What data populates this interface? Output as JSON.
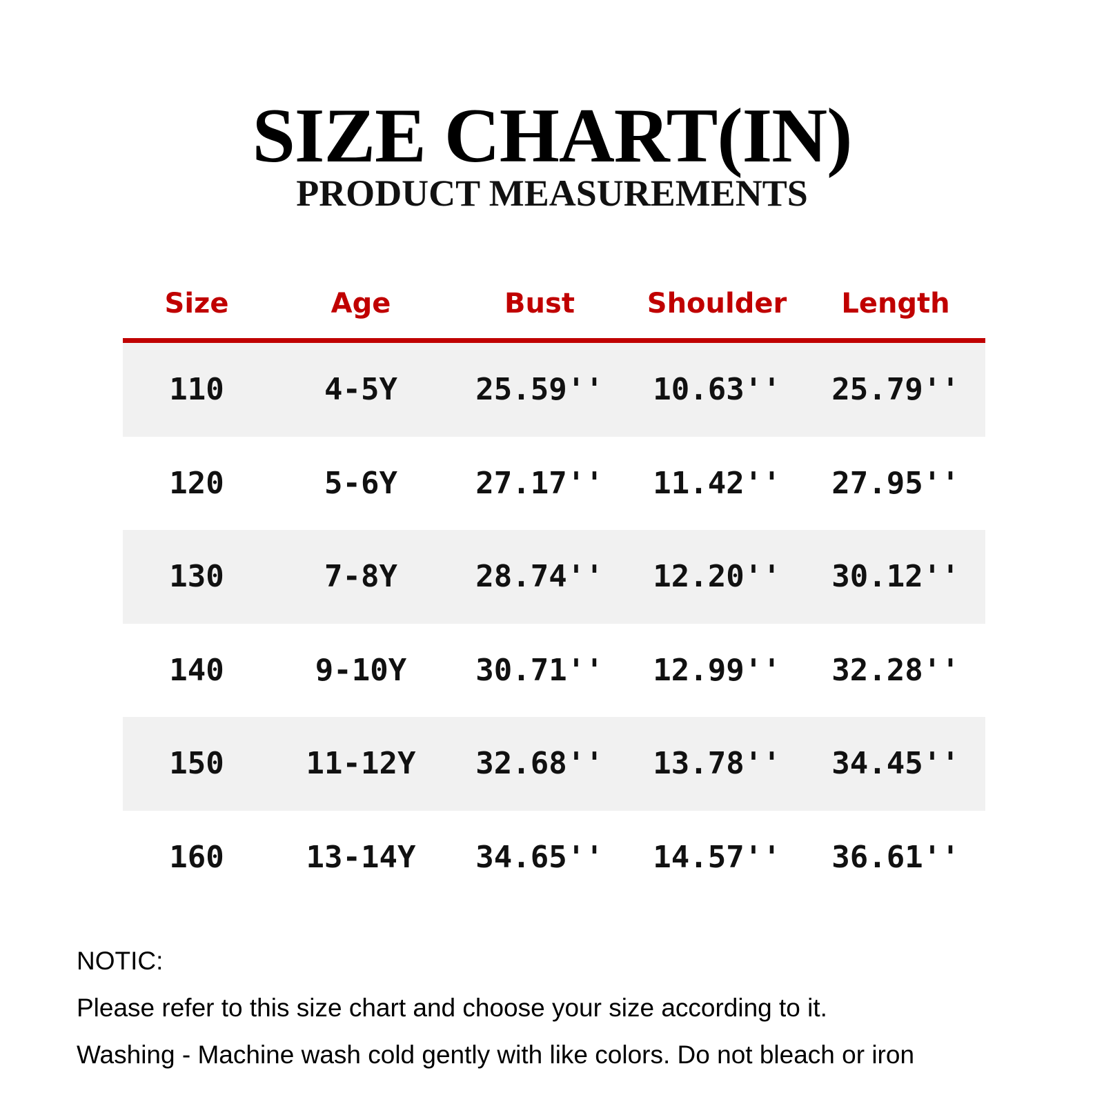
{
  "title": "SIZE CHART(IN)",
  "subtitle": "PRODUCT MEASUREMENTS",
  "accent_color": "#c00000",
  "table": {
    "headers": [
      "Size",
      "Age",
      "Bust",
      "Shoulder",
      "Length"
    ],
    "rows": [
      [
        "110",
        "4-5Y",
        "25.59''",
        "10.63''",
        "25.79''"
      ],
      [
        "120",
        "5-6Y",
        "27.17''",
        "11.42''",
        "27.95''"
      ],
      [
        "130",
        "7-8Y",
        "28.74''",
        "12.20''",
        "30.12''"
      ],
      [
        "140",
        "9-10Y",
        "30.71''",
        "12.99''",
        "32.28''"
      ],
      [
        "150",
        "11-12Y",
        "32.68''",
        "13.78''",
        "34.45''"
      ],
      [
        "160",
        "13-14Y",
        "34.65''",
        "14.57''",
        "36.61''"
      ]
    ]
  },
  "notes": [
    "NOTIC:",
    "Please refer to this size chart and choose your size according to it.",
    "Washing - Machine wash cold gently with like colors. Do not bleach or iron"
  ]
}
